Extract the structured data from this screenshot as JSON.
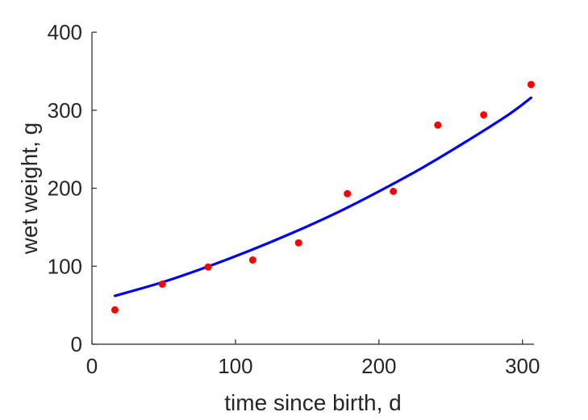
{
  "chart_data": {
    "type": "scatter",
    "xlabel": "time since birth, d",
    "ylabel": "wet weight, g",
    "xlim": [
      0,
      308
    ],
    "ylim": [
      0,
      400
    ],
    "xticks": [
      0,
      100,
      200,
      300
    ],
    "yticks": [
      0,
      100,
      200,
      300,
      400
    ],
    "grid": false,
    "colors": {
      "points": "#ff0000",
      "curve": "#0000ff",
      "axis": "#262626"
    },
    "series": [
      {
        "type": "scatter",
        "x": [
          16,
          49,
          81,
          112,
          144,
          178,
          210,
          241,
          273,
          306
        ],
        "y": [
          44,
          77,
          99,
          108,
          130,
          193,
          196,
          281,
          294,
          333
        ]
      },
      {
        "type": "line",
        "x": [
          16,
          50,
          80,
          110,
          140,
          170,
          200,
          230,
          260,
          290,
          306
        ],
        "y": [
          62,
          80,
          99,
          120,
          143,
          168,
          196,
          226,
          259,
          294,
          316
        ]
      }
    ]
  }
}
